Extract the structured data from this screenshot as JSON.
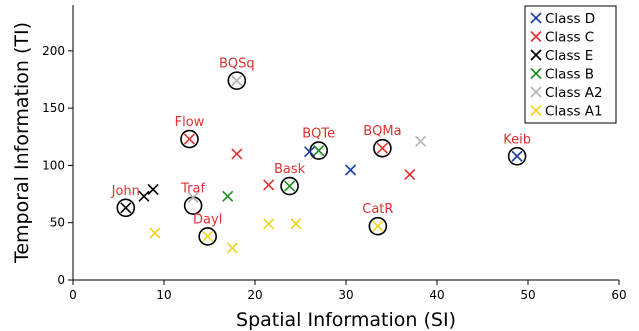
{
  "chart_data": {
    "type": "scatter",
    "xlabel": "Spatial Information (SI)",
    "ylabel": "Temporal Information (TI)",
    "xlim": [
      0,
      60
    ],
    "ylim": [
      0,
      240
    ],
    "xticks": [
      "0",
      "10",
      "20",
      "30",
      "40",
      "50",
      "60"
    ],
    "yticks": [
      "0",
      "50",
      "100",
      "150",
      "200"
    ],
    "grid": false,
    "legend_position": "top-right",
    "series": [
      {
        "name": "Class D",
        "color": "#1f3fa0",
        "points": [
          [
            26.0,
            112
          ],
          [
            30.5,
            96
          ],
          [
            48.8,
            108
          ]
        ]
      },
      {
        "name": "Class C",
        "color": "#e03030",
        "points": [
          [
            12.8,
            123
          ],
          [
            18.0,
            110
          ],
          [
            21.5,
            83
          ],
          [
            34.0,
            115
          ],
          [
            37.0,
            92
          ]
        ]
      },
      {
        "name": "Class E",
        "color": "#000000",
        "points": [
          [
            5.8,
            63
          ],
          [
            7.8,
            73
          ],
          [
            8.8,
            79
          ]
        ]
      },
      {
        "name": "Class B",
        "color": "#1e8c1e",
        "points": [
          [
            17.0,
            73
          ],
          [
            23.8,
            82
          ],
          [
            27.0,
            113
          ]
        ]
      },
      {
        "name": "Class A2",
        "color": "#b4b4b4",
        "points": [
          [
            13.2,
            72
          ],
          [
            18.0,
            174
          ],
          [
            38.2,
            121
          ]
        ]
      },
      {
        "name": "Class A1",
        "color": "#f5d21e",
        "points": [
          [
            9.0,
            41
          ],
          [
            14.8,
            38
          ],
          [
            17.5,
            28
          ],
          [
            21.5,
            49
          ],
          [
            24.5,
            49
          ],
          [
            33.5,
            47
          ]
        ]
      }
    ],
    "annotations": [
      {
        "label": "BQSq",
        "x": 18.0,
        "y": 174,
        "color": "#e03030"
      },
      {
        "label": "Flow",
        "x": 12.8,
        "y": 123,
        "color": "#e03030"
      },
      {
        "label": "BQTe",
        "x": 27.0,
        "y": 113,
        "color": "#e03030"
      },
      {
        "label": "BQMa",
        "x": 34.0,
        "y": 115,
        "color": "#e03030"
      },
      {
        "label": "Keib",
        "x": 48.8,
        "y": 108,
        "color": "#e03030"
      },
      {
        "label": "Bask",
        "x": 23.8,
        "y": 82,
        "color": "#e03030"
      },
      {
        "label": "John",
        "x": 5.8,
        "y": 63,
        "color": "#e03030"
      },
      {
        "label": "Traf",
        "x": 13.2,
        "y": 65,
        "color": "#e03030"
      },
      {
        "label": "Dayl",
        "x": 14.8,
        "y": 38,
        "color": "#e03030"
      },
      {
        "label": "CatR",
        "x": 33.5,
        "y": 47,
        "color": "#e03030"
      }
    ]
  }
}
